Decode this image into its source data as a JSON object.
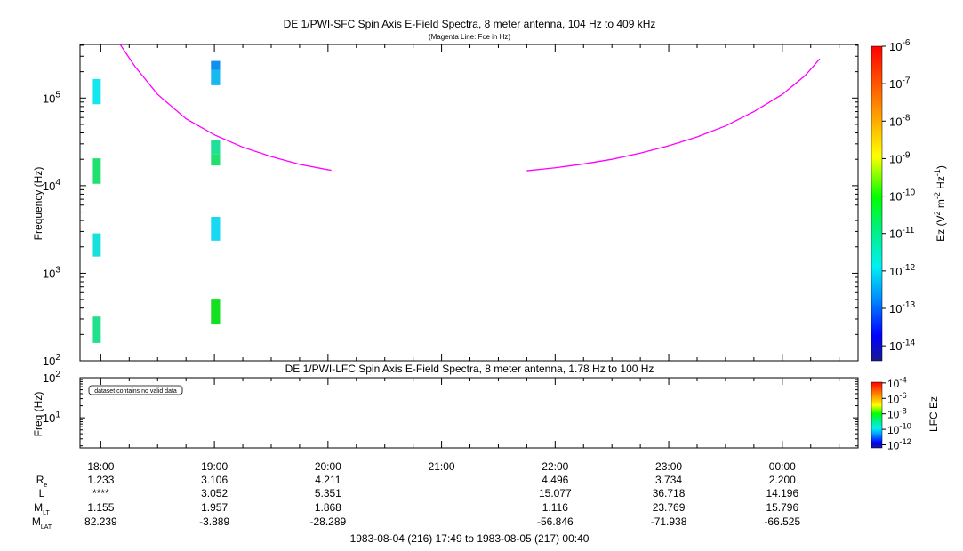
{
  "chart_data": [
    {
      "type": "heatmap",
      "title": "DE 1/PWI-SFC  Spin Axis E-Field Spectra, 8 meter antenna, 104 Hz to 409 kHz",
      "subtitle": "(Magenta Line: Fce in Hz)",
      "ylabel": "Frequency (Hz)",
      "yscale": "log",
      "ylim": [
        100,
        409000
      ],
      "ytick_labels": [
        {
          "base": "10",
          "exp": "2",
          "value": 100
        },
        {
          "base": "10",
          "exp": "3",
          "value": 1000
        },
        {
          "base": "10",
          "exp": "4",
          "value": 10000
        },
        {
          "base": "10",
          "exp": "5",
          "value": 100000
        }
      ],
      "xlim_hours": [
        17.817,
        24.667
      ],
      "colorbar": {
        "label_main": "Ez (V",
        "label_sup1": "2",
        "label_mid": " m",
        "label_sup2": "-2",
        "label_mid2": " Hz",
        "label_sup3": "-1",
        "label_end": ")",
        "scale": "log",
        "range": [
          1e-14,
          1e-06
        ],
        "tick_labels": [
          {
            "base": "10",
            "exp": "-6",
            "value": -6
          },
          {
            "base": "10",
            "exp": "-7",
            "value": -7
          },
          {
            "base": "10",
            "exp": "-8",
            "value": -8
          },
          {
            "base": "10",
            "exp": "-9",
            "value": -9
          },
          {
            "base": "10",
            "exp": "-10",
            "value": -10
          },
          {
            "base": "10",
            "exp": "-11",
            "value": -11
          },
          {
            "base": "10",
            "exp": "-12",
            "value": -12
          },
          {
            "base": "10",
            "exp": "-13",
            "value": -13
          },
          {
            "base": "10",
            "exp": "-14",
            "value": -14
          }
        ]
      },
      "cells": [
        {
          "t0": 17.93,
          "t1": 18.0,
          "f0": 85000,
          "f1": 165000,
          "color": "#14e6f0"
        },
        {
          "t0": 17.93,
          "t1": 18.0,
          "f0": 10500,
          "f1": 20500,
          "color": "#20e070"
        },
        {
          "t0": 17.93,
          "t1": 18.0,
          "f0": 1550,
          "f1": 2850,
          "color": "#18e0dc"
        },
        {
          "t0": 17.93,
          "t1": 18.0,
          "f0": 160,
          "f1": 320,
          "color": "#20e08c"
        },
        {
          "t0": 18.97,
          "t1": 19.05,
          "f0": 210000,
          "f1": 265000,
          "color": "#1090ee"
        },
        {
          "t0": 18.97,
          "t1": 19.05,
          "f0": 140000,
          "f1": 210000,
          "color": "#18b8f0"
        },
        {
          "t0": 18.97,
          "t1": 19.05,
          "f0": 23000,
          "f1": 33000,
          "color": "#20e098"
        },
        {
          "t0": 18.97,
          "t1": 19.05,
          "f0": 17000,
          "f1": 23000,
          "color": "#22e070"
        },
        {
          "t0": 18.97,
          "t1": 19.05,
          "f0": 2350,
          "f1": 4400,
          "color": "#18d8f2"
        },
        {
          "t0": 18.97,
          "t1": 19.05,
          "f0": 260,
          "f1": 500,
          "color": "#12e020"
        }
      ],
      "fce_line_color": "#ff00ff",
      "fce_segments": [
        [
          [
            18.17,
            450000
          ],
          [
            18.3,
            230000
          ],
          [
            18.5,
            110000
          ],
          [
            18.75,
            58000
          ],
          [
            19.0,
            38000
          ],
          [
            19.25,
            27500
          ],
          [
            19.5,
            21500
          ],
          [
            19.75,
            17500
          ],
          [
            20.0,
            15200
          ],
          [
            20.03,
            15000
          ]
        ],
        [
          [
            21.75,
            14800
          ],
          [
            22.0,
            16000
          ],
          [
            22.25,
            17700
          ],
          [
            22.5,
            20000
          ],
          [
            22.75,
            23500
          ],
          [
            23.0,
            28500
          ],
          [
            23.25,
            36000
          ],
          [
            23.5,
            48000
          ],
          [
            23.75,
            70000
          ],
          [
            24.0,
            110000
          ],
          [
            24.2,
            180000
          ],
          [
            24.33,
            280000
          ]
        ]
      ]
    },
    {
      "type": "heatmap",
      "title": "DE 1/PWI-LFC  Spin Axis E-Field Spectra, 8 meter antenna, 1.78 Hz to 100 Hz",
      "ylabel": "Freq (Hz)",
      "yscale": "log",
      "ylim": [
        1.78,
        100
      ],
      "ytick_labels": [
        {
          "base": "10",
          "exp": "1",
          "value": 10
        },
        {
          "base": "10",
          "exp": "2",
          "value": 100
        }
      ],
      "annotation": "dataset contains no valid data",
      "colorbar": {
        "label": "LFC Ez",
        "scale": "log",
        "range": [
          1e-12,
          0.0001
        ],
        "tick_labels": [
          {
            "base": "10",
            "exp": "-4",
            "value": -4
          },
          {
            "base": "10",
            "exp": "-6",
            "value": -6
          },
          {
            "base": "10",
            "exp": "-8",
            "value": -8
          },
          {
            "base": "10",
            "exp": "-10",
            "value": -10
          },
          {
            "base": "10",
            "exp": "-12",
            "value": -12
          }
        ]
      }
    }
  ],
  "time_axis": {
    "tick_labels": [
      "18:00",
      "19:00",
      "20:00",
      "21:00",
      "22:00",
      "23:00",
      "00:00"
    ],
    "tick_hours": [
      18,
      19,
      20,
      21,
      22,
      23,
      24
    ]
  },
  "ephemeris": {
    "rows": [
      {
        "label": "R",
        "sub": "e",
        "values": [
          "1.233",
          "3.106",
          "4.211",
          "",
          "4.496",
          "3.734",
          "2.200"
        ]
      },
      {
        "label": "L",
        "sub": "",
        "values": [
          "****",
          "3.052",
          "5.351",
          "",
          "15.077",
          "36.718",
          "14.196"
        ]
      },
      {
        "label": "M",
        "sub": "LT",
        "values": [
          "1.155",
          "1.957",
          "1.868",
          "",
          "1.116",
          "23.769",
          "15.796"
        ]
      },
      {
        "label": "M",
        "sub": "LAT",
        "values": [
          "82.239",
          "-3.889",
          "-28.289",
          "",
          "-56.846",
          "-71.938",
          "-66.525"
        ]
      }
    ]
  },
  "time_range": "1983-08-04 (216) 17:49 to 1983-08-05 (217) 00:40"
}
